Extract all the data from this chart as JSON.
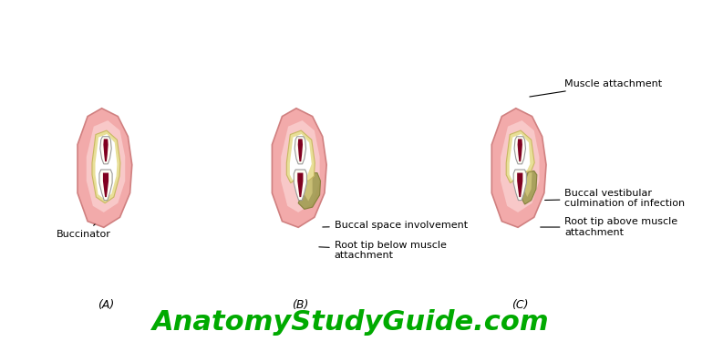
{
  "title": "",
  "background_color": "#ffffff",
  "watermark_text": "AnatomyStudyGuide.com",
  "watermark_color": "#00aa00",
  "watermark_fontsize": 22,
  "watermark_bold": true,
  "labels": {
    "A": "(A)",
    "B": "(B)",
    "C": "(C)",
    "buccinator": "Buccinator",
    "buccal_space": "Buccal space involvement",
    "root_tip_below": "Root tip below muscle\nattachment",
    "muscle_attachment": "Muscle attachment",
    "buccal_vestibular": "Buccal vestibular\nculmination of infection",
    "root_tip_above": "Root tip above muscle\nattachment"
  },
  "label_fontsize": 8,
  "sub_label_fontsize": 9
}
